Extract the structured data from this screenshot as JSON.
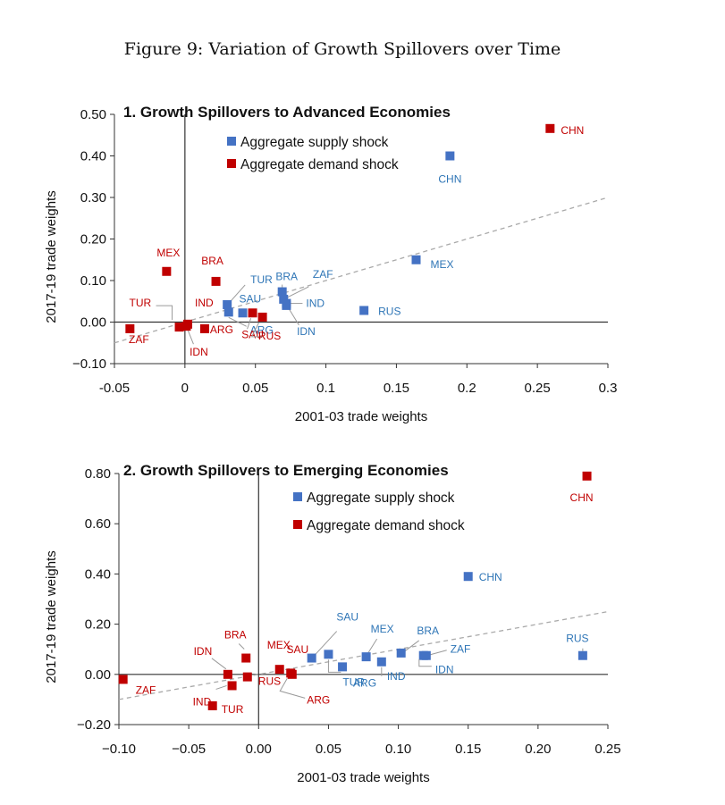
{
  "figure_title": "Figure 9: Variation of Growth Spillovers over Time",
  "colors": {
    "supply": "#4472C4",
    "demand": "#C00000",
    "supply_text": "#2E75B6",
    "trend": "#AAAAAA"
  },
  "chart_data": [
    {
      "type": "scatter",
      "title": "1. Growth Spillovers to Advanced Economies",
      "xlabel": "2001-03 trade weights",
      "ylabel": "2017-19 trade weights",
      "xlim": [
        -0.05,
        0.3
      ],
      "ylim": [
        -0.1,
        0.5
      ],
      "xticks": [
        -0.05,
        0,
        0.05,
        0.1,
        0.15,
        0.2,
        0.25,
        0.3
      ],
      "xtick_labels": [
        "-0.05",
        "0",
        "0.05",
        "0.1",
        "0.15",
        "0.2",
        "0.25",
        "0.3"
      ],
      "yticks": [
        -0.1,
        0,
        0.1,
        0.2,
        0.3,
        0.4,
        0.5
      ],
      "ytick_labels": [
        "−0.10",
        "0.00",
        "0.10",
        "0.20",
        "0.30",
        "0.40",
        "0.50"
      ],
      "trendline": [
        [
          -0.05,
          -0.05
        ],
        [
          0.3,
          0.3
        ]
      ],
      "grid": false,
      "legend_position": "top-center",
      "series": [
        {
          "name": "Aggregate supply shock",
          "color": "#4472C4",
          "points": [
            {
              "label": "CHN",
              "x": 0.188,
              "y": 0.4
            },
            {
              "label": "MEX",
              "x": 0.164,
              "y": 0.15
            },
            {
              "label": "RUS",
              "x": 0.127,
              "y": 0.028
            },
            {
              "label": "BRA",
              "x": 0.069,
              "y": 0.073
            },
            {
              "label": "ZAF",
              "x": 0.07,
              "y": 0.055
            },
            {
              "label": "IND",
              "x": 0.072,
              "y": 0.045
            },
            {
              "label": "IDN",
              "x": 0.072,
              "y": 0.04
            },
            {
              "label": "TUR",
              "x": 0.03,
              "y": 0.042
            },
            {
              "label": "SAU",
              "x": 0.041,
              "y": 0.022
            },
            {
              "label": "ARG",
              "x": 0.031,
              "y": 0.024
            }
          ]
        },
        {
          "name": "Aggregate demand shock",
          "color": "#C00000",
          "points": [
            {
              "label": "CHN",
              "x": 0.259,
              "y": 0.466
            },
            {
              "label": "MEX",
              "x": -0.013,
              "y": 0.122
            },
            {
              "label": "BRA",
              "x": 0.022,
              "y": 0.098
            },
            {
              "label": "TUR",
              "x": -0.004,
              "y": -0.012
            },
            {
              "label": "IND",
              "x": 0.002,
              "y": -0.005
            },
            {
              "label": "ARG",
              "x": 0.014,
              "y": -0.016
            },
            {
              "label": "IDN",
              "x": 0.001,
              "y": -0.01
            },
            {
              "label": "ZAF",
              "x": -0.039,
              "y": -0.016
            },
            {
              "label": "SAU",
              "x": 0.048,
              "y": 0.022
            },
            {
              "label": "RUS",
              "x": 0.055,
              "y": 0.012
            }
          ]
        }
      ]
    },
    {
      "type": "scatter",
      "title": "2. Growth Spillovers to Emerging Economies",
      "xlabel": "2001-03 trade weights",
      "ylabel": "2017-19 trade weights",
      "xlim": [
        -0.1,
        0.25
      ],
      "ylim": [
        -0.2,
        0.8
      ],
      "xticks": [
        -0.1,
        -0.05,
        0,
        0.05,
        0.1,
        0.15,
        0.2,
        0.25
      ],
      "xtick_labels": [
        "−0.10",
        "−0.05",
        "0.00",
        "0.05",
        "0.10",
        "0.15",
        "0.20",
        "0.25"
      ],
      "yticks": [
        -0.2,
        0,
        0.2,
        0.4,
        0.6,
        0.8
      ],
      "ytick_labels": [
        "−0.20",
        "0.00",
        "0.20",
        "0.40",
        "0.60",
        "0.80"
      ],
      "trendline": [
        [
          -0.1,
          -0.1
        ],
        [
          0.25,
          0.25
        ]
      ],
      "grid": false,
      "legend_position": "top-center",
      "series": [
        {
          "name": "Aggregate supply shock",
          "color": "#4472C4",
          "points": [
            {
              "label": "CHN",
              "x": 0.15,
              "y": 0.39
            },
            {
              "label": "RUS",
              "x": 0.232,
              "y": 0.075
            },
            {
              "label": "SAU",
              "x": 0.038,
              "y": 0.065
            },
            {
              "label": "TUR",
              "x": 0.05,
              "y": 0.08
            },
            {
              "label": "MEX",
              "x": 0.077,
              "y": 0.07
            },
            {
              "label": "ARG",
              "x": 0.06,
              "y": 0.03
            },
            {
              "label": "BRA",
              "x": 0.102,
              "y": 0.085
            },
            {
              "label": "IND",
              "x": 0.088,
              "y": 0.05
            },
            {
              "label": "ZAF",
              "x": 0.118,
              "y": 0.075
            },
            {
              "label": "IDN",
              "x": 0.12,
              "y": 0.075
            }
          ]
        },
        {
          "name": "Aggregate demand shock",
          "color": "#C00000",
          "points": [
            {
              "label": "CHN",
              "x": 0.235,
              "y": 0.79
            },
            {
              "label": "ZAF",
              "x": -0.097,
              "y": -0.02
            },
            {
              "label": "BRA",
              "x": -0.009,
              "y": 0.065
            },
            {
              "label": "IDN",
              "x": -0.022,
              "y": 0.0
            },
            {
              "label": "IND",
              "x": -0.019,
              "y": -0.045
            },
            {
              "label": "TUR",
              "x": -0.033,
              "y": -0.125
            },
            {
              "label": "RUS",
              "x": -0.008,
              "y": -0.01
            },
            {
              "label": "MEX",
              "x": 0.015,
              "y": 0.02
            },
            {
              "label": "SAU",
              "x": 0.024,
              "y": 0.0
            },
            {
              "label": "ARG",
              "x": 0.023,
              "y": 0.005
            }
          ]
        }
      ]
    }
  ]
}
